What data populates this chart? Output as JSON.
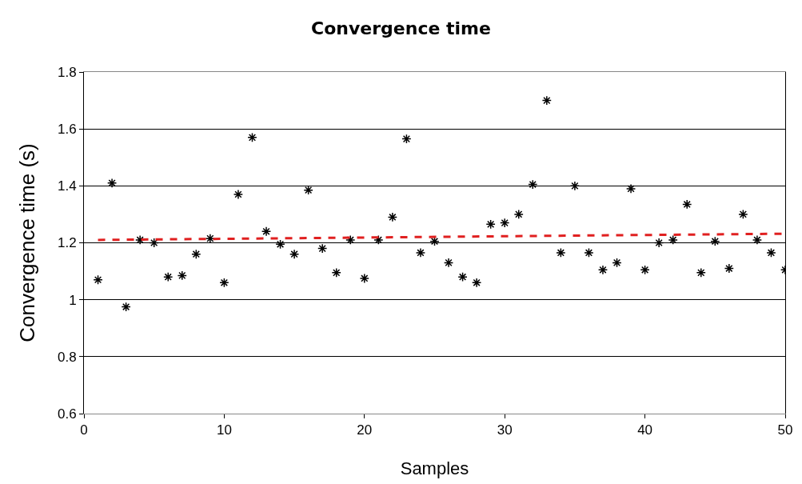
{
  "chart_data": {
    "type": "scatter",
    "title": "Convergence time",
    "xlabel": "Samples",
    "ylabel": "Convergence time (s)",
    "x": [
      1,
      2,
      3,
      4,
      5,
      6,
      7,
      8,
      9,
      10,
      11,
      12,
      13,
      14,
      15,
      16,
      17,
      18,
      19,
      20,
      21,
      22,
      23,
      24,
      25,
      26,
      27,
      28,
      29,
      30,
      31,
      32,
      33,
      34,
      35,
      36,
      37,
      38,
      39,
      40,
      41,
      42,
      43,
      44,
      45,
      46,
      47,
      48,
      49,
      50
    ],
    "series": [
      {
        "color": "#000000",
        "marker": "cross",
        "values": [
          1.07,
          1.41,
          0.975,
          1.21,
          1.2,
          1.08,
          1.085,
          1.16,
          1.215,
          1.06,
          1.37,
          1.57,
          1.24,
          1.195,
          1.16,
          1.385,
          1.18,
          1.095,
          1.21,
          1.075,
          1.21,
          1.29,
          1.565,
          1.165,
          1.205,
          1.13,
          1.08,
          1.06,
          1.265,
          1.27,
          1.3,
          1.405,
          1.7,
          1.165,
          1.4,
          1.165,
          1.105,
          1.13,
          1.39,
          1.105,
          1.2,
          1.21,
          1.335,
          1.095,
          1.205,
          1.11,
          1.3,
          1.21,
          1.165,
          1.105
        ]
      },
      {
        "type": "line",
        "color": "#e02020",
        "line_style": "dashed",
        "marker": "none",
        "x": [
          1,
          50
        ],
        "values": [
          1.21,
          1.232
        ]
      }
    ],
    "xlim": [
      0,
      50
    ],
    "xticks": [
      0,
      10,
      20,
      30,
      40,
      50
    ],
    "ylim": [
      0.6,
      1.8
    ],
    "yticks": [
      0.6,
      0.8,
      1,
      1.2,
      1.4,
      1.6,
      1.8
    ],
    "grid": "y",
    "legend": false
  }
}
